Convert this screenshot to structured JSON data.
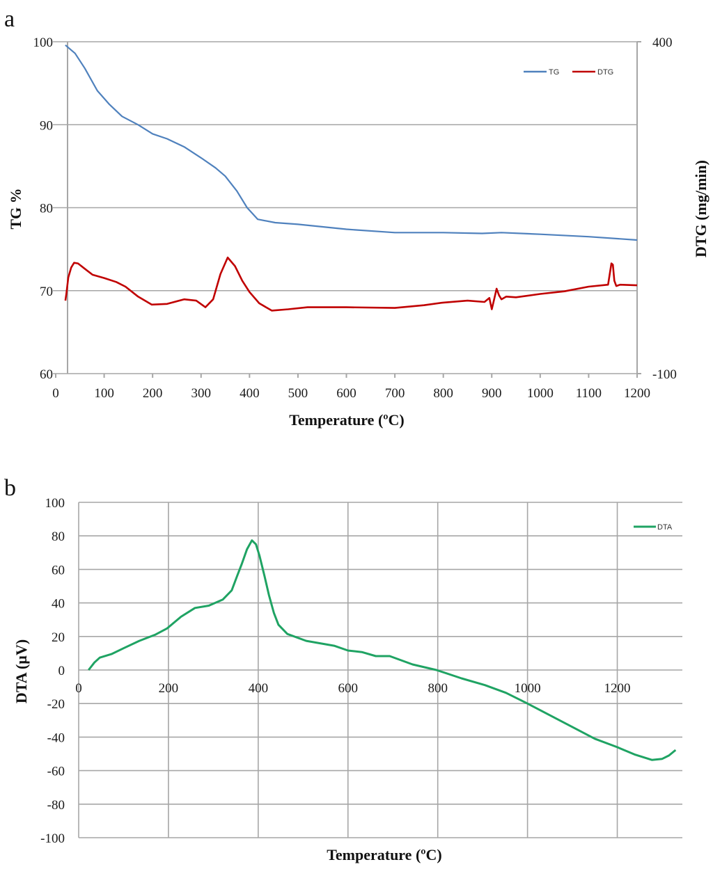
{
  "figure": {
    "panel_a_label": "a",
    "panel_b_label": "b"
  },
  "chart_data": [
    {
      "type": "line",
      "panel": "a",
      "title": "",
      "xlabel": "Temperature (ºC)",
      "ylabel": "TG %",
      "y2label": "DTG (mg/min)",
      "xlim": [
        0,
        1200
      ],
      "ylim": [
        60,
        100
      ],
      "y2lim": [
        -100,
        400
      ],
      "x_ticks": [
        "0",
        "100",
        "200",
        "300",
        "400",
        "500",
        "600",
        "700",
        "800",
        "900",
        "1000",
        "1100",
        "1200"
      ],
      "y_ticks": [
        "60",
        "70",
        "80",
        "90",
        "100"
      ],
      "y2_ticks": [
        "-100",
        "400"
      ],
      "grid": "horizontal",
      "legend": {
        "position": "top-right",
        "entries": [
          "TG",
          "DTG"
        ]
      },
      "series": [
        {
          "name": "TG",
          "axis": "left",
          "color": "#4f81bd",
          "x": [
            20,
            40,
            60,
            86,
            110,
            137,
            170,
            200,
            230,
            266,
            300,
            330,
            350,
            374,
            395,
            417,
            453,
            500,
            600,
            700,
            800,
            880,
            920,
            1000,
            1100,
            1200
          ],
          "y": [
            99.6,
            98.6,
            96.8,
            94.1,
            92.5,
            91.0,
            90.0,
            88.9,
            88.3,
            87.3,
            86.0,
            84.8,
            83.8,
            82.0,
            80.0,
            78.6,
            78.2,
            78.0,
            77.4,
            77.0,
            77.0,
            76.9,
            77.0,
            76.8,
            76.5,
            76.1
          ]
        },
        {
          "name": "DTG",
          "axis": "right",
          "color": "#c00000",
          "x": [
            20,
            22,
            26,
            32,
            38,
            46,
            60,
            76,
            100,
            125,
            144,
            170,
            198,
            230,
            265,
            290,
            309,
            325,
            340,
            355,
            370,
            385,
            400,
            420,
            446,
            480,
            520,
            600,
            700,
            760,
            800,
            850,
            885,
            895,
            900,
            905,
            910,
            915,
            920,
            930,
            950,
            1000,
            1050,
            1100,
            1140,
            1147,
            1150,
            1153,
            1157,
            1165,
            1200
          ],
          "y": [
            10,
            20,
            45,
            60,
            67,
            66,
            58,
            49,
            44,
            38,
            31,
            16,
            4,
            5,
            12,
            10,
            0,
            12,
            50,
            75,
            62,
            40,
            23,
            6,
            -5,
            -3,
            0,
            0,
            -1,
            3,
            7,
            10,
            8,
            14,
            -3,
            12,
            28,
            18,
            12,
            16,
            15,
            20,
            24,
            31,
            34,
            66,
            64,
            40,
            32,
            34,
            33
          ]
        }
      ]
    },
    {
      "type": "line",
      "panel": "b",
      "title": "",
      "xlabel": "Temperature (ºC)",
      "ylabel": "DTA (µV)",
      "xlim": [
        0,
        1345
      ],
      "ylim": [
        -100,
        100
      ],
      "x_ticks": [
        "0",
        "200",
        "400",
        "600",
        "800",
        "1000",
        "1200"
      ],
      "y_ticks": [
        "-100",
        "-80",
        "-60",
        "-40",
        "-20",
        "0",
        "20",
        "40",
        "60",
        "80",
        "100"
      ],
      "grid": "both",
      "legend": {
        "position": "top-right",
        "entries": [
          "DTA"
        ]
      },
      "series": [
        {
          "name": "DTA",
          "color": "#1fa363",
          "x": [
            22,
            35,
            47,
            73,
            100,
            135,
            170,
            197,
            228,
            259,
            290,
            321,
            341,
            353,
            363,
            375,
            386,
            395,
            403,
            414,
            424,
            435,
            445,
            465,
            507,
            569,
            600,
            631,
            662,
            693,
            744,
            797,
            853,
            905,
            952,
            1000,
            1050,
            1100,
            1150,
            1200,
            1240,
            1277,
            1300,
            1315,
            1330
          ],
          "y": [
            0,
            4.5,
            7.4,
            9.5,
            13,
            17.4,
            21,
            24.8,
            31.8,
            37,
            38.4,
            42,
            47.5,
            56,
            63,
            72,
            77.3,
            75,
            68,
            56,
            44.6,
            34,
            27,
            21.5,
            17.4,
            14.5,
            11.6,
            10.7,
            8.3,
            8.3,
            3.3,
            0,
            -5,
            -9,
            -13.6,
            -20,
            -27,
            -34,
            -41,
            -46,
            -50.5,
            -53.6,
            -53,
            -51,
            -47.7
          ]
        }
      ]
    }
  ]
}
